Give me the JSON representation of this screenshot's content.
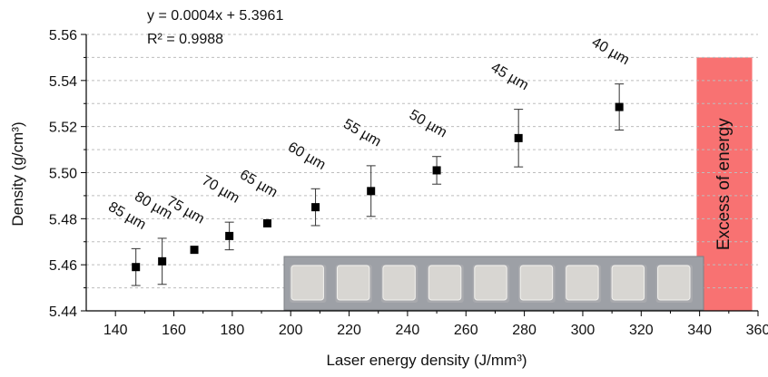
{
  "chart_data": {
    "type": "scatter",
    "title": "",
    "equation": "y = 0.0004x + 5.3961",
    "r_squared": "R² = 0.9988",
    "xlabel": "Laser energy density (J/mm³)",
    "ylabel": "Density (g/cm³)",
    "xlim": [
      130,
      360
    ],
    "ylim": [
      5.44,
      5.56
    ],
    "x_ticks": [
      "140",
      "160",
      "180",
      "200",
      "220",
      "240",
      "260",
      "280",
      "300",
      "320",
      "340",
      "360"
    ],
    "y_ticks": [
      "5.44",
      "5.46",
      "5.48",
      "5.50",
      "5.52",
      "5.54",
      "5.56"
    ],
    "grid": "horizontal dashed",
    "points": [
      {
        "x": 147,
        "y": 5.459,
        "err": 0.008,
        "label": "85 µm"
      },
      {
        "x": 156,
        "y": 5.4615,
        "err": 0.01,
        "label": "80 µm"
      },
      {
        "x": 167,
        "y": 5.4665,
        "err": 0,
        "label": "75 µm"
      },
      {
        "x": 179,
        "y": 5.4725,
        "err": 0.006,
        "label": "70 µm"
      },
      {
        "x": 192,
        "y": 5.478,
        "err": 0,
        "label": "65 µm"
      },
      {
        "x": 208.5,
        "y": 5.485,
        "err": 0.008,
        "label": "60 µm"
      },
      {
        "x": 227.5,
        "y": 5.492,
        "err": 0.011,
        "label": "55 µm"
      },
      {
        "x": 250,
        "y": 5.501,
        "err": 0.006,
        "label": "50 µm"
      },
      {
        "x": 278,
        "y": 5.515,
        "err": 0.0125,
        "label": "45 µm"
      },
      {
        "x": 312.5,
        "y": 5.5285,
        "err": 0.01,
        "label": "40 µm"
      }
    ],
    "excess_region": {
      "x_from": 339,
      "x_to": 358,
      "label": "Excess of energy",
      "color": "#f87272"
    },
    "inset_photo": {
      "sample_count": 9,
      "background": "#9da0a6",
      "sample_color": "#d8d6d2"
    }
  }
}
